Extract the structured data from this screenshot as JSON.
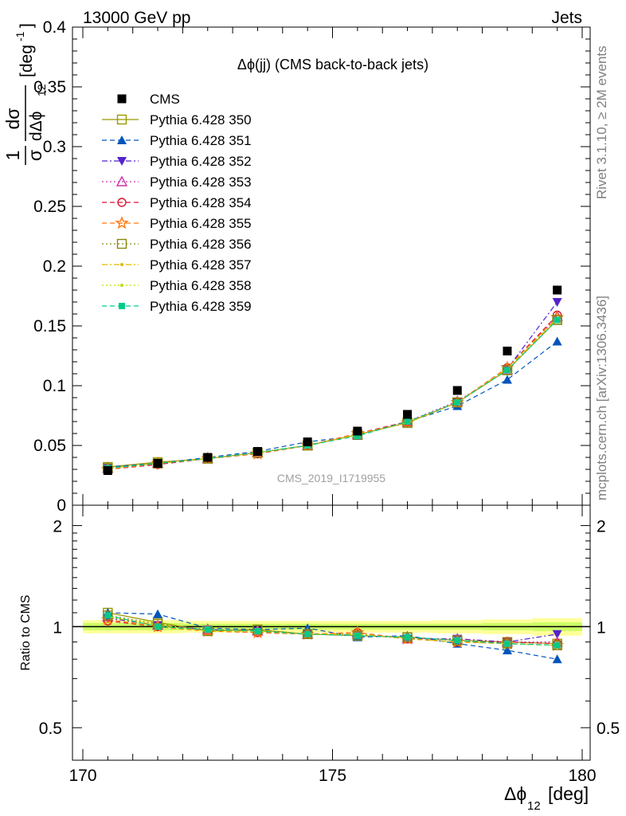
{
  "header": {
    "left": "13000 GeV pp",
    "right": "Jets"
  },
  "side_texts": {
    "rivet": "Rivet 3.1.10, ≥ 2M events",
    "mcplots": "mcplots.cern.ch [arXiv:1306.3436]"
  },
  "watermark": "CMS_2019_I1719955",
  "colors": {
    "CMS": "#000000",
    "Pythia 6.428 350": "#999900",
    "Pythia 6.428 351": "#0055bb",
    "Pythia 6.428 352": "#5522cc",
    "Pythia 6.428 353": "#cc33aa",
    "Pythia 6.428 354": "#dd1133",
    "Pythia 6.428 355": "#ff7711",
    "Pythia 6.428 356": "#888811",
    "Pythia 6.428 357": "#ddbb00",
    "Pythia 6.428 358": "#bbdd00",
    "Pythia 6.428 359": "#00cc88",
    "band_outer": "#ffff99",
    "band_inner": "#ccff66"
  },
  "chart_data": [
    {
      "type": "scatter",
      "title": "Δϕ(jj) (CMS back-to-back jets)",
      "xlabel": "Δϕ",
      "xlabel_sub": "12",
      "xlabel_unit": "[deg]",
      "ylabel": "1/σ dσ/dΔϕ₁₂ [deg⁻¹]",
      "ylabel_parts": {
        "one": "1",
        "dsigma": "dσ",
        "sigma": "σ",
        "ddphi": "dΔϕ",
        "sub": "12",
        "unit": "[deg",
        "unit_exp": "-1",
        "unit_close": "]"
      },
      "xlim": [
        170,
        180
      ],
      "ylim": [
        0,
        0.4
      ],
      "x_ticks": [
        "170",
        "175",
        "180"
      ],
      "y_ticks": [
        "0",
        "0.05",
        "0.1",
        "0.15",
        "0.2",
        "0.25",
        "0.3",
        "0.35",
        "0.4"
      ],
      "legend_position": "top-left",
      "x": [
        170.5,
        171.5,
        172.5,
        173.5,
        174.5,
        175.5,
        176.5,
        177.5,
        178.5,
        179.5
      ],
      "series": [
        {
          "name": "CMS",
          "marker": "square-filled",
          "values": [
            0.029,
            0.035,
            0.04,
            0.045,
            0.053,
            0.062,
            0.076,
            0.096,
            0.129,
            0.18
          ]
        },
        {
          "name": "Pythia 6.428 350",
          "marker": "square-open",
          "line": "solid",
          "values": [
            0.032,
            0.036,
            0.039,
            0.044,
            0.05,
            0.059,
            0.069,
            0.086,
            0.113,
            0.155
          ]
        },
        {
          "name": "Pythia 6.428 351",
          "marker": "triangle-filled",
          "line": "dashed",
          "values": [
            0.032,
            0.035,
            0.04,
            0.045,
            0.053,
            0.058,
            0.07,
            0.083,
            0.105,
            0.137
          ]
        },
        {
          "name": "Pythia 6.428 352",
          "marker": "triangle-down-filled",
          "line": "dashdot",
          "values": [
            0.031,
            0.035,
            0.039,
            0.044,
            0.05,
            0.059,
            0.069,
            0.086,
            0.114,
            0.17
          ]
        },
        {
          "name": "Pythia 6.428 353",
          "marker": "triangle-open",
          "line": "dotted",
          "values": [
            0.031,
            0.035,
            0.039,
            0.044,
            0.05,
            0.059,
            0.07,
            0.087,
            0.113,
            0.158
          ]
        },
        {
          "name": "Pythia 6.428 354",
          "marker": "circle-open",
          "line": "dashed",
          "values": [
            0.03,
            0.034,
            0.039,
            0.043,
            0.05,
            0.06,
            0.07,
            0.086,
            0.115,
            0.159
          ]
        },
        {
          "name": "Pythia 6.428 355",
          "marker": "star-open",
          "line": "dashed",
          "values": [
            0.03,
            0.035,
            0.039,
            0.043,
            0.05,
            0.06,
            0.069,
            0.086,
            0.115,
            0.157
          ]
        },
        {
          "name": "Pythia 6.428 356",
          "marker": "square-open",
          "line": "dotted",
          "values": [
            0.031,
            0.035,
            0.039,
            0.044,
            0.05,
            0.059,
            0.069,
            0.086,
            0.113,
            0.155
          ]
        },
        {
          "name": "Pythia 6.428 357",
          "marker": "small-dot",
          "line": "dashdot",
          "values": [
            0.031,
            0.035,
            0.039,
            0.044,
            0.05,
            0.059,
            0.069,
            0.086,
            0.114,
            0.156
          ]
        },
        {
          "name": "Pythia 6.428 358",
          "marker": "small-dot",
          "line": "dotted",
          "values": [
            0.031,
            0.035,
            0.039,
            0.044,
            0.05,
            0.059,
            0.069,
            0.086,
            0.114,
            0.156
          ]
        },
        {
          "name": "Pythia 6.428 359",
          "marker": "small-square",
          "line": "dashed",
          "values": [
            0.031,
            0.035,
            0.039,
            0.044,
            0.05,
            0.058,
            0.07,
            0.086,
            0.113,
            0.155
          ]
        }
      ]
    },
    {
      "type": "scatter",
      "title": "",
      "ylabel": "Ratio to CMS",
      "xlim": [
        170,
        180
      ],
      "ylim": [
        0.4,
        2.3
      ],
      "y_ticks": [
        "0.5",
        "1",
        "2"
      ],
      "x": [
        170.5,
        171.5,
        172.5,
        173.5,
        174.5,
        175.5,
        176.5,
        177.5,
        178.5,
        179.5
      ],
      "reference": 1,
      "band_inner": [
        0.025,
        0.025,
        0.02,
        0.02,
        0.02,
        0.02,
        0.02,
        0.02,
        0.025,
        0.03
      ],
      "band_outer": [
        0.045,
        0.045,
        0.04,
        0.04,
        0.04,
        0.04,
        0.04,
        0.045,
        0.05,
        0.06
      ],
      "series": [
        {
          "name": "Pythia 6.428 350",
          "values": [
            1.1,
            1.03,
            0.97,
            0.98,
            0.95,
            0.94,
            0.93,
            0.91,
            0.9,
            0.89
          ]
        },
        {
          "name": "Pythia 6.428 351",
          "values": [
            1.1,
            1.09,
            0.99,
            0.98,
            0.99,
            0.93,
            0.94,
            0.89,
            0.85,
            0.8
          ]
        },
        {
          "name": "Pythia 6.428 352",
          "values": [
            1.06,
            1.01,
            0.98,
            0.97,
            0.95,
            0.95,
            0.92,
            0.92,
            0.9,
            0.95
          ]
        },
        {
          "name": "Pythia 6.428 353",
          "values": [
            1.07,
            1.01,
            0.98,
            0.97,
            0.95,
            0.95,
            0.92,
            0.92,
            0.9,
            0.9
          ]
        },
        {
          "name": "Pythia 6.428 354",
          "values": [
            1.04,
            1.0,
            0.97,
            0.96,
            0.95,
            0.96,
            0.92,
            0.9,
            0.9,
            0.89
          ]
        },
        {
          "name": "Pythia 6.428 355",
          "values": [
            1.05,
            1.0,
            0.97,
            0.96,
            0.95,
            0.96,
            0.92,
            0.9,
            0.89,
            0.88
          ]
        },
        {
          "name": "Pythia 6.428 356",
          "values": [
            1.08,
            1.02,
            0.97,
            0.98,
            0.95,
            0.94,
            0.93,
            0.91,
            0.89,
            0.88
          ]
        },
        {
          "name": "Pythia 6.428 357",
          "values": [
            1.07,
            1.01,
            0.97,
            0.97,
            0.95,
            0.95,
            0.92,
            0.9,
            0.89,
            0.88
          ]
        },
        {
          "name": "Pythia 6.428 358",
          "values": [
            1.07,
            1.01,
            0.97,
            0.97,
            0.95,
            0.95,
            0.92,
            0.9,
            0.89,
            0.88
          ]
        },
        {
          "name": "Pythia 6.428 359",
          "values": [
            1.08,
            1.0,
            0.98,
            0.97,
            0.95,
            0.94,
            0.93,
            0.91,
            0.89,
            0.88
          ]
        }
      ]
    }
  ]
}
